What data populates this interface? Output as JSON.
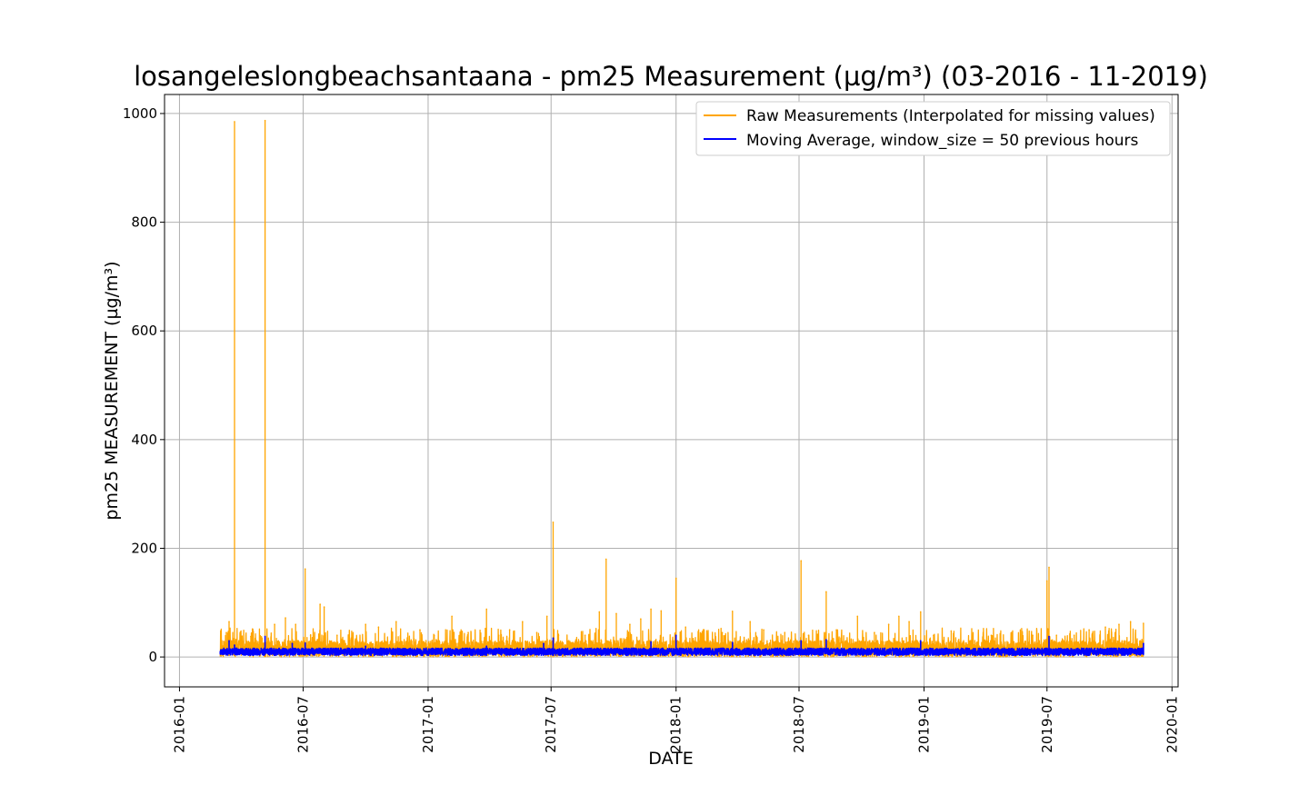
{
  "chart_data": {
    "type": "line",
    "title": "losangeleslongbeachsantaana - pm25 Measurement (µg/m³) (03-2016 - 11-2019)",
    "xlabel": "DATE",
    "ylabel": "pm25 MEASUREMENT (µg/m³)",
    "x_type": "date",
    "xlim": [
      "2015-12-10",
      "2020-01-10"
    ],
    "ylim": [
      -55,
      1035
    ],
    "grid": true,
    "legend_position": "top-right",
    "x_ticks": [
      "2016-01",
      "2016-07",
      "2017-01",
      "2017-07",
      "2018-01",
      "2018-07",
      "2019-01",
      "2019-07",
      "2020-01"
    ],
    "y_ticks": [
      0,
      200,
      400,
      600,
      800,
      1000
    ],
    "series": [
      {
        "name": "Raw Measurements (Interpolated for missing values)",
        "color": "#ffa500",
        "baseline_range": [
          0,
          38
        ],
        "points": [
          [
            "2016-03-01",
            8
          ],
          [
            "2016-03-10",
            45
          ],
          [
            "2016-03-14",
            65
          ],
          [
            "2016-03-22",
            985
          ],
          [
            "2016-04-01",
            30
          ],
          [
            "2016-04-15",
            38
          ],
          [
            "2016-05-06",
            987
          ],
          [
            "2016-05-20",
            60
          ],
          [
            "2016-06-05",
            72
          ],
          [
            "2016-06-20",
            60
          ],
          [
            "2016-07-04",
            162
          ],
          [
            "2016-07-12",
            40
          ],
          [
            "2016-07-26",
            97
          ],
          [
            "2016-08-01",
            92
          ],
          [
            "2016-08-20",
            40
          ],
          [
            "2016-09-10",
            35
          ],
          [
            "2016-10-01",
            60
          ],
          [
            "2016-10-20",
            55
          ],
          [
            "2016-11-15",
            65
          ],
          [
            "2016-12-20",
            50
          ],
          [
            "2017-01-10",
            40
          ],
          [
            "2017-02-05",
            75
          ],
          [
            "2017-03-01",
            45
          ],
          [
            "2017-03-28",
            88
          ],
          [
            "2017-04-15",
            40
          ],
          [
            "2017-05-01",
            50
          ],
          [
            "2017-05-20",
            65
          ],
          [
            "2017-06-10",
            45
          ],
          [
            "2017-06-25",
            75
          ],
          [
            "2017-07-04",
            248
          ],
          [
            "2017-07-12",
            40
          ],
          [
            "2017-08-01",
            15
          ],
          [
            "2017-08-20",
            40
          ],
          [
            "2017-09-10",
            83
          ],
          [
            "2017-09-20",
            180
          ],
          [
            "2017-10-05",
            80
          ],
          [
            "2017-10-25",
            60
          ],
          [
            "2017-11-10",
            70
          ],
          [
            "2017-11-25",
            88
          ],
          [
            "2017-12-10",
            85
          ],
          [
            "2018-01-01",
            145
          ],
          [
            "2018-01-15",
            55
          ],
          [
            "2018-02-10",
            50
          ],
          [
            "2018-03-10",
            45
          ],
          [
            "2018-03-25",
            84
          ],
          [
            "2018-04-20",
            65
          ],
          [
            "2018-05-10",
            50
          ],
          [
            "2018-06-10",
            45
          ],
          [
            "2018-07-04",
            177
          ],
          [
            "2018-07-15",
            40
          ],
          [
            "2018-08-10",
            120
          ],
          [
            "2018-08-25",
            50
          ],
          [
            "2018-09-25",
            75
          ],
          [
            "2018-10-20",
            45
          ],
          [
            "2018-11-10",
            60
          ],
          [
            "2018-11-25",
            75
          ],
          [
            "2018-12-10",
            65
          ],
          [
            "2018-12-27",
            83
          ],
          [
            "2019-01-15",
            40
          ],
          [
            "2019-02-10",
            48
          ],
          [
            "2019-03-10",
            30
          ],
          [
            "2019-04-10",
            40
          ],
          [
            "2019-05-10",
            45
          ],
          [
            "2019-06-10",
            40
          ],
          [
            "2019-07-01",
            140
          ],
          [
            "2019-07-04",
            165
          ],
          [
            "2019-07-15",
            40
          ],
          [
            "2019-08-10",
            40
          ],
          [
            "2019-09-01",
            50
          ],
          [
            "2019-09-25",
            55
          ],
          [
            "2019-10-15",
            60
          ],
          [
            "2019-11-01",
            65
          ],
          [
            "2019-11-20",
            62
          ]
        ]
      },
      {
        "name": "Moving Average, window_size = 50 previous hours",
        "color": "#0000ff",
        "baseline_range": [
          3,
          22
        ],
        "points": [
          [
            "2016-03-01",
            10
          ],
          [
            "2016-03-14",
            30
          ],
          [
            "2016-03-22",
            22
          ],
          [
            "2016-05-06",
            38
          ],
          [
            "2016-06-15",
            25
          ],
          [
            "2016-07-04",
            26
          ],
          [
            "2016-10-01",
            20
          ],
          [
            "2017-01-15",
            8
          ],
          [
            "2017-03-28",
            20
          ],
          [
            "2017-06-20",
            25
          ],
          [
            "2017-07-04",
            35
          ],
          [
            "2017-08-01",
            14
          ],
          [
            "2017-11-25",
            28
          ],
          [
            "2018-01-01",
            40
          ],
          [
            "2018-03-25",
            27
          ],
          [
            "2018-07-04",
            30
          ],
          [
            "2018-08-10",
            32
          ],
          [
            "2018-12-27",
            30
          ],
          [
            "2019-03-10",
            10
          ],
          [
            "2019-07-04",
            38
          ],
          [
            "2019-11-20",
            25
          ]
        ]
      }
    ]
  }
}
